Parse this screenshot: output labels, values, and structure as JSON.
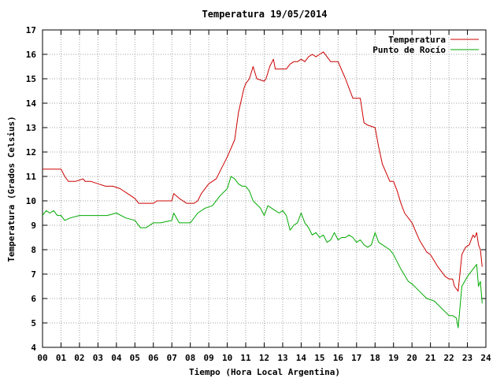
{
  "chart_data": {
    "type": "line",
    "title": "Temperatura 19/05/2014",
    "xlabel": "Tiempo (Hora Local Argentina)",
    "ylabel": "Temperatura (Grados Celsius)",
    "xlim": [
      0,
      24
    ],
    "ylim": [
      4,
      17
    ],
    "xticks": [
      "00",
      "01",
      "02",
      "03",
      "04",
      "05",
      "06",
      "07",
      "08",
      "09",
      "10",
      "11",
      "12",
      "13",
      "14",
      "15",
      "16",
      "17",
      "18",
      "19",
      "20",
      "21",
      "22",
      "23",
      "24"
    ],
    "yticks": [
      "4",
      "5",
      "6",
      "7",
      "8",
      "9",
      "10",
      "11",
      "12",
      "13",
      "14",
      "15",
      "16",
      "17"
    ],
    "grid": true,
    "legend_position": "top-right",
    "series": [
      {
        "name": "Temperatura",
        "color": "#cc0000",
        "x": [
          0.0,
          0.5,
          1.0,
          1.2,
          1.4,
          1.8,
          2.2,
          2.3,
          2.6,
          3.0,
          3.4,
          3.8,
          4.2,
          4.6,
          5.0,
          5.2,
          5.6,
          6.0,
          6.2,
          6.5,
          7.0,
          7.1,
          7.4,
          7.8,
          8.2,
          8.4,
          8.6,
          9.0,
          9.4,
          9.6,
          10.0,
          10.4,
          10.6,
          10.9,
          11.0,
          11.2,
          11.4,
          11.6,
          12.0,
          12.1,
          12.3,
          12.5,
          12.6,
          12.8,
          13.2,
          13.4,
          13.6,
          13.8,
          14.0,
          14.2,
          14.4,
          14.6,
          14.8,
          15.0,
          15.2,
          15.4,
          15.6,
          16.0,
          16.4,
          16.8,
          17.2,
          17.4,
          17.6,
          18.0,
          18.2,
          18.4,
          18.8,
          19.0,
          19.2,
          19.4,
          19.6,
          20.0,
          20.4,
          20.8,
          21.0,
          21.4,
          21.8,
          22.0,
          22.2,
          22.3,
          22.5,
          22.7,
          22.9,
          23.1,
          23.3,
          23.4,
          23.5,
          23.6,
          23.7,
          23.8
        ],
        "values": [
          11.3,
          11.3,
          11.3,
          11.0,
          10.8,
          10.8,
          10.9,
          10.8,
          10.8,
          10.7,
          10.6,
          10.6,
          10.5,
          10.3,
          10.1,
          9.9,
          9.9,
          9.9,
          10.0,
          10.0,
          10.0,
          10.3,
          10.1,
          9.9,
          9.9,
          10.0,
          10.3,
          10.7,
          10.9,
          11.2,
          11.8,
          12.5,
          13.6,
          14.6,
          14.8,
          15.0,
          15.5,
          15.0,
          14.9,
          15.0,
          15.5,
          15.8,
          15.4,
          15.4,
          15.4,
          15.6,
          15.7,
          15.7,
          15.8,
          15.7,
          15.9,
          16.0,
          15.9,
          16.0,
          16.1,
          15.9,
          15.7,
          15.7,
          15.0,
          14.2,
          14.2,
          13.2,
          13.1,
          13.0,
          12.2,
          11.5,
          10.8,
          10.8,
          10.4,
          9.9,
          9.5,
          9.1,
          8.4,
          7.9,
          7.8,
          7.3,
          6.9,
          6.8,
          6.8,
          6.5,
          6.3,
          7.8,
          8.1,
          8.2,
          8.6,
          8.5,
          8.7,
          8.2,
          8.0,
          7.3
        ]
      },
      {
        "name": "Punto de Rocío",
        "color": "#00aa00",
        "x": [
          0.0,
          0.2,
          0.4,
          0.6,
          0.8,
          1.0,
          1.2,
          1.5,
          2.0,
          2.5,
          3.0,
          3.5,
          4.0,
          4.5,
          5.0,
          5.3,
          5.6,
          6.0,
          6.4,
          7.0,
          7.1,
          7.4,
          8.0,
          8.4,
          8.8,
          9.2,
          9.6,
          10.0,
          10.2,
          10.4,
          10.6,
          10.8,
          11.0,
          11.2,
          11.4,
          11.8,
          12.0,
          12.2,
          12.4,
          12.6,
          12.8,
          13.0,
          13.2,
          13.4,
          13.6,
          13.8,
          14.0,
          14.2,
          14.4,
          14.6,
          14.8,
          15.0,
          15.2,
          15.4,
          15.6,
          15.8,
          16.0,
          16.2,
          16.4,
          16.6,
          16.8,
          17.0,
          17.2,
          17.4,
          17.6,
          17.8,
          18.0,
          18.2,
          18.4,
          18.8,
          19.0,
          19.4,
          19.8,
          20.0,
          20.4,
          20.8,
          21.2,
          21.6,
          22.0,
          22.2,
          22.4,
          22.5,
          22.7,
          23.0,
          23.2,
          23.4,
          23.5,
          23.6,
          23.7,
          23.8
        ],
        "values": [
          9.4,
          9.6,
          9.5,
          9.6,
          9.4,
          9.4,
          9.2,
          9.3,
          9.4,
          9.4,
          9.4,
          9.4,
          9.5,
          9.3,
          9.2,
          8.9,
          8.9,
          9.1,
          9.1,
          9.2,
          9.5,
          9.1,
          9.1,
          9.5,
          9.7,
          9.8,
          10.2,
          10.5,
          11.0,
          10.9,
          10.7,
          10.6,
          10.6,
          10.4,
          10.0,
          9.7,
          9.4,
          9.8,
          9.7,
          9.6,
          9.5,
          9.6,
          9.4,
          8.8,
          9.0,
          9.1,
          9.5,
          9.1,
          8.9,
          8.6,
          8.7,
          8.5,
          8.6,
          8.3,
          8.4,
          8.7,
          8.4,
          8.5,
          8.5,
          8.6,
          8.5,
          8.3,
          8.4,
          8.2,
          8.1,
          8.2,
          8.7,
          8.3,
          8.2,
          8.0,
          7.8,
          7.2,
          6.7,
          6.6,
          6.3,
          6.0,
          5.9,
          5.6,
          5.3,
          5.3,
          5.2,
          4.8,
          6.5,
          6.9,
          7.1,
          7.3,
          7.4,
          6.5,
          6.7,
          5.8
        ]
      }
    ]
  }
}
